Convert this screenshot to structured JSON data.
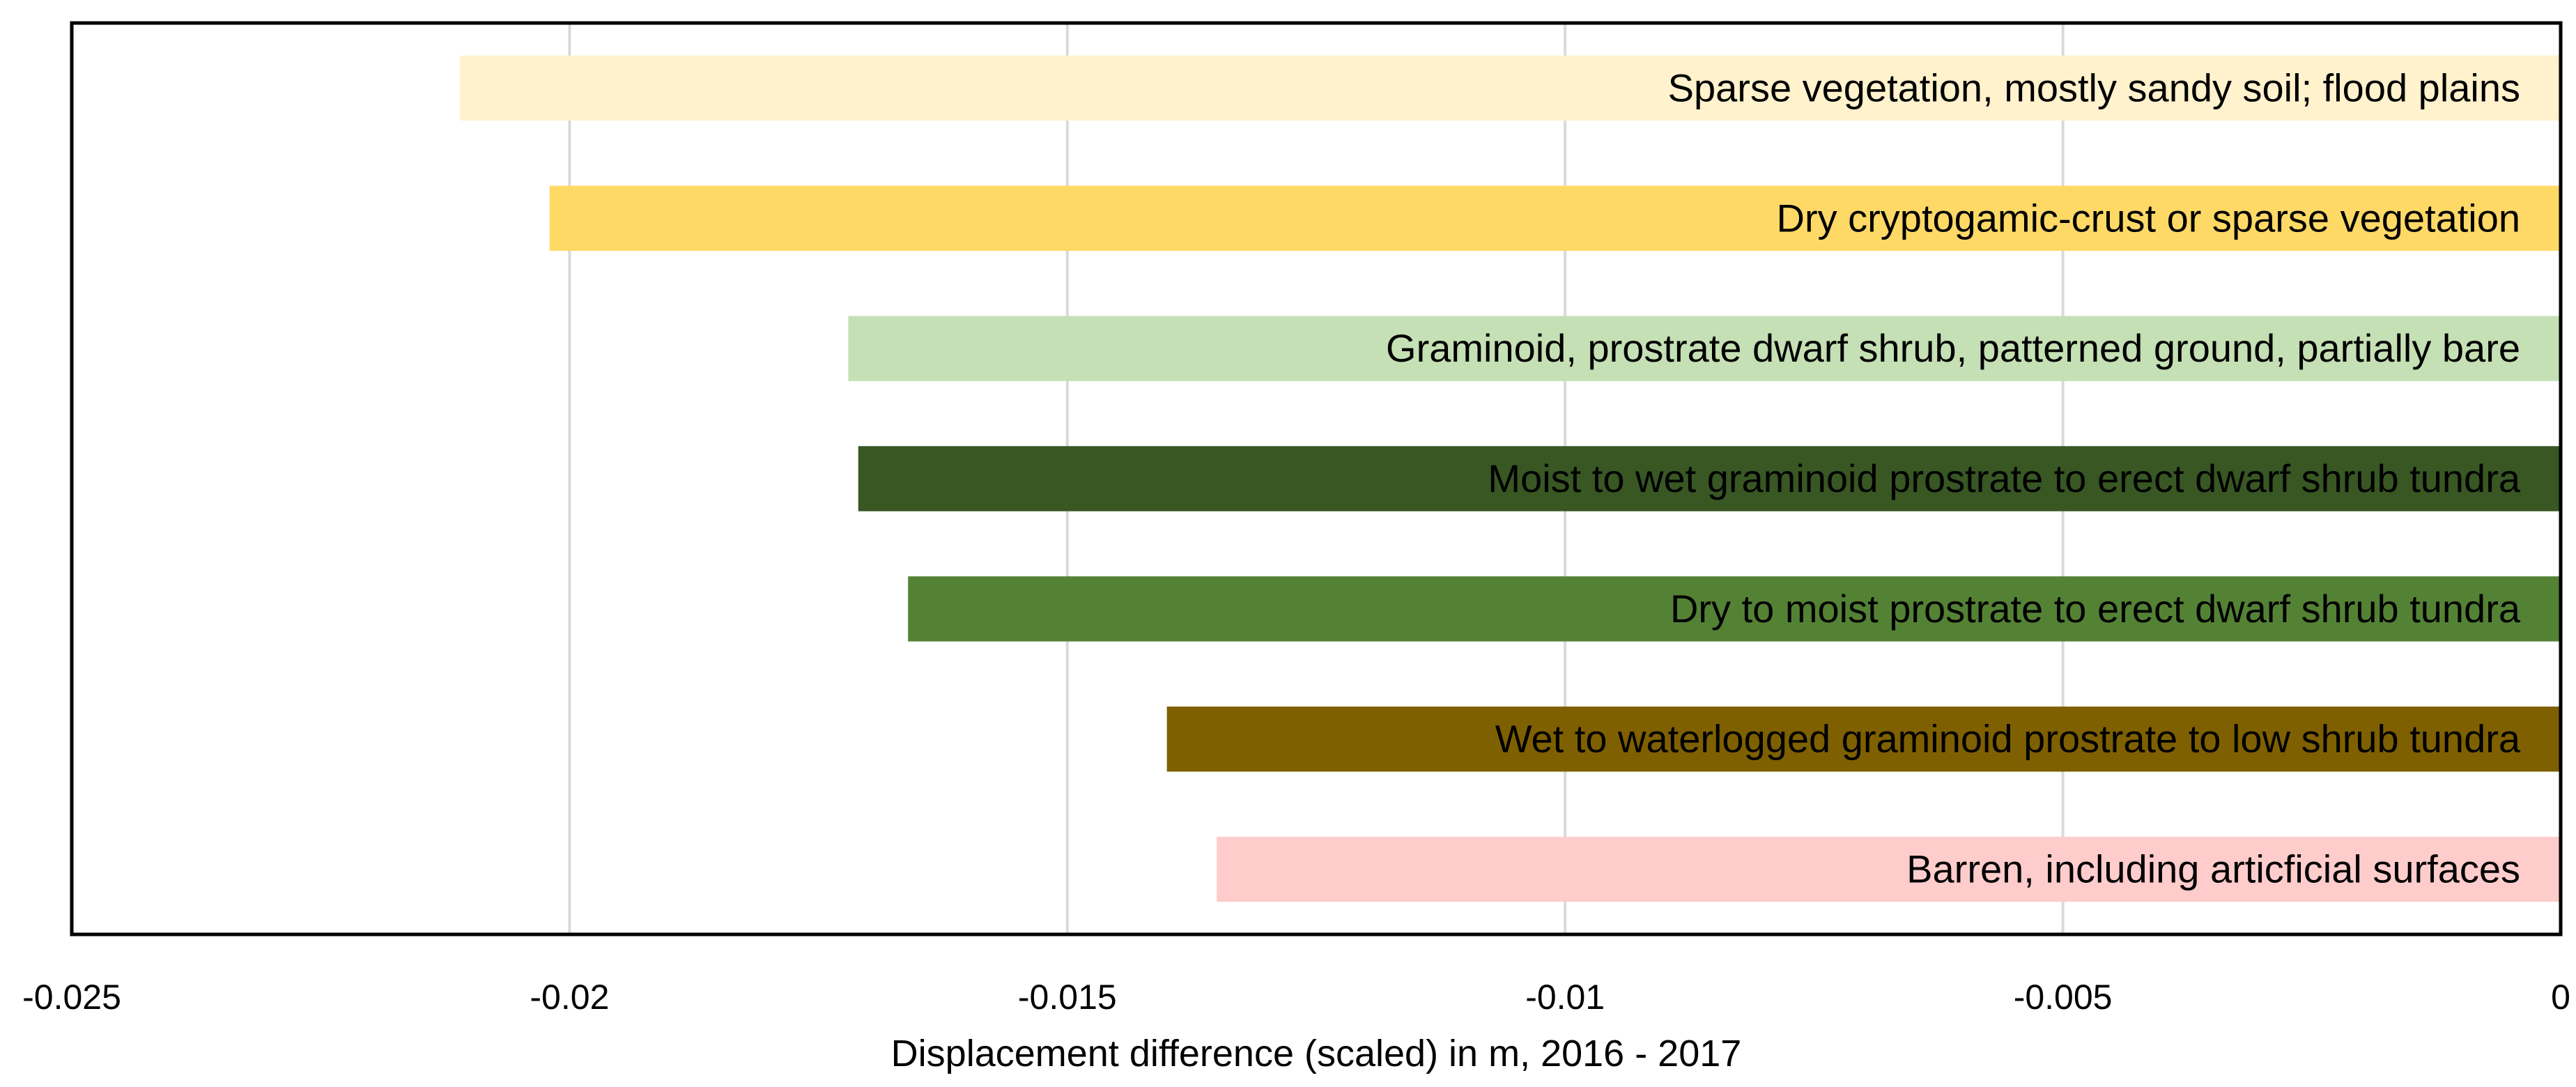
{
  "chart_data": {
    "type": "bar",
    "orientation": "horizontal",
    "title": "",
    "xlabel": "Displacement difference (scaled) in m, 2016 - 2017",
    "ylabel": "",
    "xlim": [
      -0.025,
      0
    ],
    "xticks": [
      -0.025,
      -0.02,
      -0.015,
      -0.01,
      -0.005,
      0
    ],
    "xtick_labels": [
      "-0.025",
      "-0.02",
      "-0.015",
      "-0.01",
      "-0.005",
      "0"
    ],
    "grid": true,
    "legend": "none",
    "categories": [
      "Sparse vegetation, mostly sandy soil; flood plains",
      "Dry cryptogamic-crust or sparse vegetation",
      "Graminoid, prostrate dwarf shrub, patterned ground, partially bare",
      "Moist to wet graminoid prostrate to erect dwarf shrub tundra",
      "Dry to moist prostrate to erect dwarf shrub tundra",
      "Wet to waterlogged graminoid prostrate to low shrub tundra",
      "Barren, including articficial surfaces"
    ],
    "values": [
      -0.0211,
      -0.0202,
      -0.0172,
      -0.0171,
      -0.0166,
      -0.014,
      -0.0135
    ],
    "colors": [
      "#fff2cc",
      "#ffd966",
      "#c5e0b4",
      "#385723",
      "#548235",
      "#7f6000",
      "#ffcccc"
    ]
  }
}
